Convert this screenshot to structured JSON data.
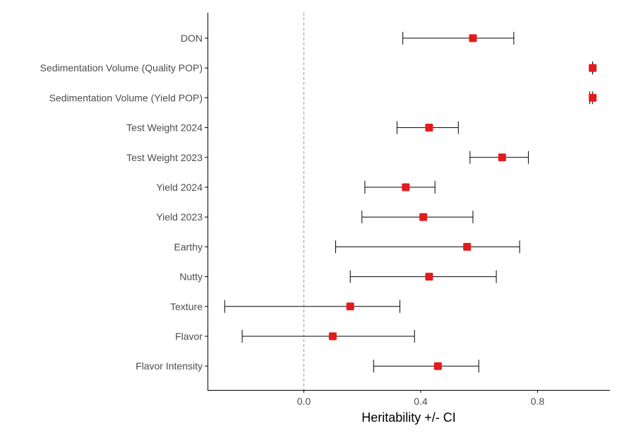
{
  "chart_data": {
    "type": "forest",
    "title": "",
    "xlabel": "Heritability +/- CI",
    "ylabel": "",
    "xlim": [
      -0.33,
      1.05
    ],
    "xticks": [
      0.0,
      0.4,
      0.8
    ],
    "xtick_labels": [
      "0.0",
      "0.4",
      "0.8"
    ],
    "reference_line": 0.0,
    "colors": {
      "point": "#e41a1c",
      "errorbar": "#000000",
      "refline": "#999999",
      "axis": "#000000",
      "labels": "#4d4d4d"
    },
    "categories": [
      "DON",
      "Sedimentation Volume (Quality POP)",
      "Sedimentation Volume (Yield POP)",
      "Test Weight 2024",
      "Test Weight 2023",
      "Yield 2024",
      "Yield 2023",
      "Earthy",
      "Nutty",
      "Texture",
      "Flavor",
      "Flavor Intensity"
    ],
    "estimate": [
      0.58,
      0.99,
      0.99,
      0.43,
      0.68,
      0.35,
      0.41,
      0.56,
      0.43,
      0.16,
      0.1,
      0.46
    ],
    "ci_low": [
      0.34,
      0.99,
      0.98,
      0.32,
      0.57,
      0.21,
      0.2,
      0.11,
      0.16,
      -0.27,
      -0.21,
      0.24
    ],
    "ci_high": [
      0.72,
      0.99,
      0.99,
      0.53,
      0.77,
      0.45,
      0.58,
      0.74,
      0.66,
      0.33,
      0.38,
      0.6
    ]
  }
}
